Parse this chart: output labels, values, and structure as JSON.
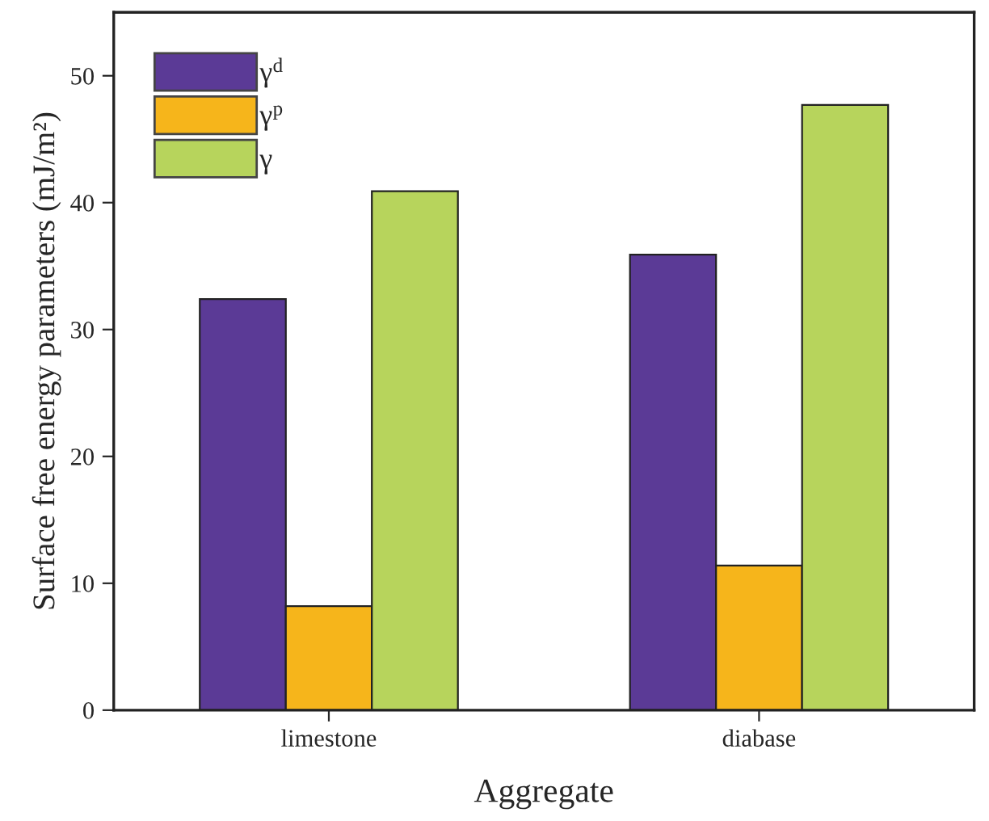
{
  "chart_data": {
    "type": "bar",
    "xlabel": "Aggregate",
    "ylabel": "Surface free energy parameters (mJ/m²)",
    "categories": [
      "limestone",
      "diabase"
    ],
    "series": [
      {
        "name": "γ$^{d}$",
        "color": "#5b3a96",
        "values": [
          32.4,
          35.9
        ]
      },
      {
        "name": "γ$^{p}$",
        "color": "#f6b51b",
        "values": [
          8.2,
          11.4
        ]
      },
      {
        "name": "γ",
        "color": "#b7d45c",
        "values": [
          40.9,
          47.7
        ]
      }
    ],
    "ylim": [
      0,
      55
    ],
    "yticks": [
      0,
      10,
      20,
      30,
      40,
      50
    ],
    "grid": false,
    "legend": "top left"
  }
}
